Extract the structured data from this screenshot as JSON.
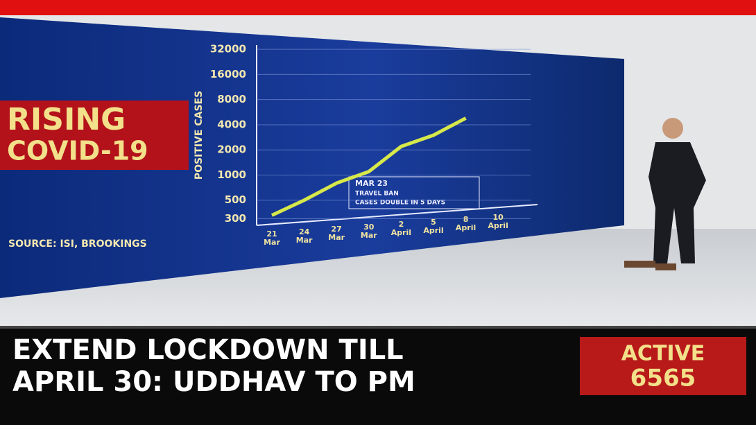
{
  "banner": {
    "title": [
      "RISING",
      "COVID-19"
    ],
    "source": "SOURCE: ISI, BROOKINGS"
  },
  "chart_data": {
    "type": "line",
    "y_label": "POSITIVE CASES",
    "categories": [
      "21 Mar",
      "24 Mar",
      "27 Mar",
      "30 Mar",
      "2 April",
      "5 April",
      "8 April",
      "10 April"
    ],
    "series": [
      {
        "name": "Positive cases",
        "color": "#d6e84a",
        "values": [
          330,
          500,
          800,
          1100,
          2200,
          3000,
          4800,
          null
        ]
      }
    ],
    "ylim": [
      250,
      36000
    ],
    "yticks": [
      300,
      500,
      1000,
      2000,
      4000,
      8000,
      16000,
      32000
    ],
    "log_scale": true,
    "grid": true,
    "annotation": [
      "MAR 23",
      "TRAVEL BAN",
      "CASES DOUBLE IN 5 DAYS"
    ]
  },
  "ticker": {
    "headline": [
      "EXTEND LOCKDOWN TILL",
      "APRIL 30: UDDHAV TO PM"
    ],
    "active_label": "ACTIVE",
    "active_value": "6565"
  }
}
